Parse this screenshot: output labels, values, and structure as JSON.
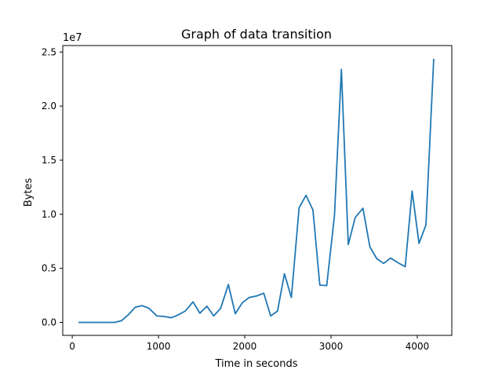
{
  "chart_data": {
    "type": "line",
    "title": "Graph of data transition",
    "xlabel": "Time in seconds",
    "ylabel": "Bytes",
    "y_offset_label": "1e7",
    "xlim": [
      -110,
      4400
    ],
    "ylim": [
      -1200000,
      25600000
    ],
    "x_ticks": [
      0,
      1000,
      2000,
      3000,
      4000
    ],
    "x_tick_labels": [
      "0",
      "1000",
      "2000",
      "3000",
      "4000"
    ],
    "y_ticks": [
      0,
      5000000,
      10000000,
      15000000,
      20000000,
      25000000
    ],
    "y_tick_labels": [
      "0.0",
      "0.5",
      "1.0",
      "1.5",
      "2.0",
      "2.5"
    ],
    "grid": false,
    "line_color": "#1f77b4",
    "series": [
      {
        "x": [
          80,
          160,
          240,
          320,
          400,
          490,
          570,
          650,
          730,
          810,
          890,
          980,
          1060,
          1150,
          1230,
          1310,
          1400,
          1480,
          1560,
          1640,
          1720,
          1810,
          1890,
          1970,
          2050,
          2140,
          2220,
          2300,
          2380,
          2460,
          2540,
          2630,
          2710,
          2790,
          2870,
          2950,
          3040,
          3120,
          3200,
          3280,
          3370,
          3450,
          3530,
          3610,
          3690,
          3780,
          3860,
          3940,
          4020,
          4100,
          4190
        ],
        "y": [
          0,
          0,
          0,
          0,
          0,
          0,
          150000,
          700000,
          1400000,
          1550000,
          1300000,
          600000,
          550000,
          430000,
          700000,
          1050000,
          1900000,
          850000,
          1500000,
          600000,
          1300000,
          3500000,
          800000,
          1800000,
          2300000,
          2450000,
          2700000,
          600000,
          1050000,
          4500000,
          2300000,
          10600000,
          11750000,
          10400000,
          3450000,
          3400000,
          9900000,
          23400000,
          7200000,
          9700000,
          10550000,
          7000000,
          5900000,
          5450000,
          5950000,
          5500000,
          5150000,
          12150000,
          7300000,
          9000000,
          24300000
        ]
      }
    ]
  }
}
